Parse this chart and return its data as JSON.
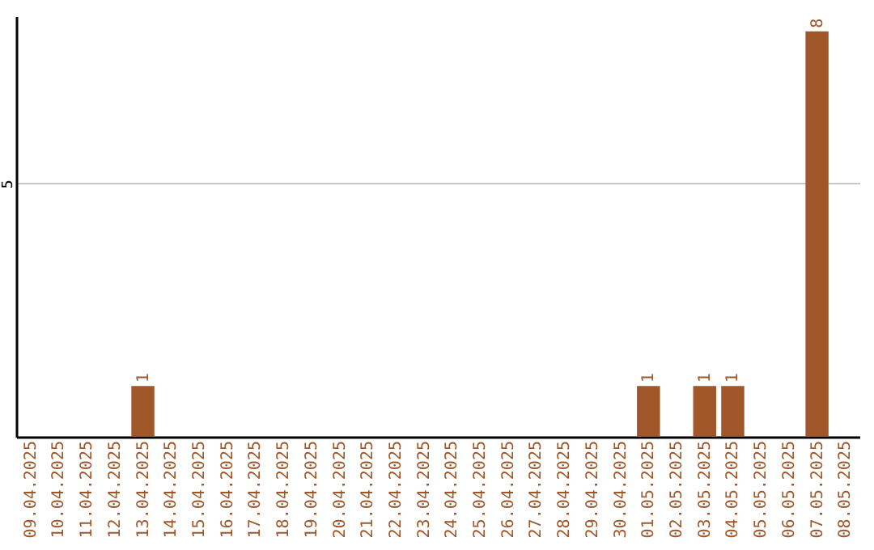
{
  "chart_data": {
    "type": "bar",
    "categories": [
      "09.04.2025",
      "10.04.2025",
      "11.04.2025",
      "12.04.2025",
      "13.04.2025",
      "14.04.2025",
      "15.04.2025",
      "16.04.2025",
      "17.04.2025",
      "18.04.2025",
      "19.04.2025",
      "20.04.2025",
      "21.04.2025",
      "22.04.2025",
      "23.04.2025",
      "24.04.2025",
      "25.04.2025",
      "26.04.2025",
      "27.04.2025",
      "28.04.2025",
      "29.04.2025",
      "30.04.2025",
      "01.05.2025",
      "02.05.2025",
      "03.05.2025",
      "04.05.2025",
      "05.05.2025",
      "06.05.2025",
      "07.05.2025",
      "08.05.2025"
    ],
    "values": [
      0,
      0,
      0,
      0,
      1,
      0,
      0,
      0,
      0,
      0,
      0,
      0,
      0,
      0,
      0,
      0,
      0,
      0,
      0,
      0,
      0,
      0,
      1,
      0,
      1,
      1,
      0,
      0,
      8,
      0
    ],
    "value_labels": [
      null,
      null,
      null,
      null,
      "1",
      null,
      null,
      null,
      null,
      null,
      null,
      null,
      null,
      null,
      null,
      null,
      null,
      null,
      null,
      null,
      null,
      null,
      "1",
      null,
      "1",
      "1",
      null,
      null,
      "8",
      null
    ],
    "color": "#a0582a",
    "ylim": [
      0,
      8.3
    ],
    "yticks": [
      5
    ],
    "grid": "y"
  }
}
